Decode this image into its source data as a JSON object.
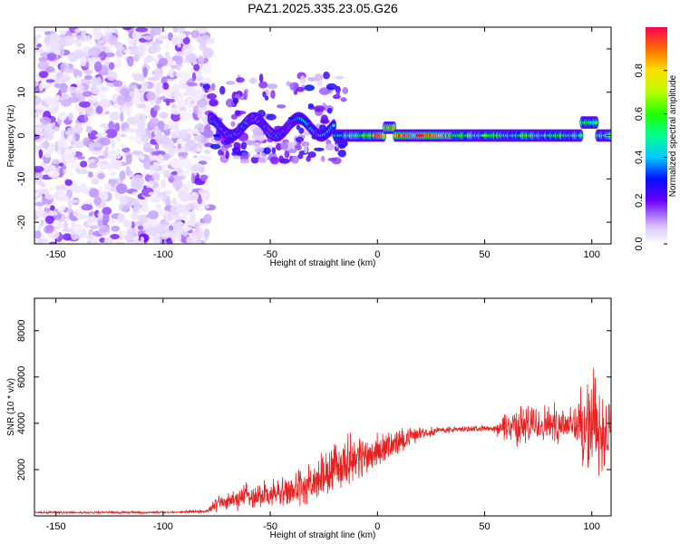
{
  "chart_data": [
    {
      "type": "heatmap",
      "title": "PAZ1.2025.335.23.05.G26",
      "xlabel": "Height of straight line (km)",
      "ylabel": "Frequency (Hz)",
      "xlim": [
        -160,
        109
      ],
      "ylim": [
        -25,
        25
      ],
      "xticks": [
        -150,
        -100,
        -50,
        0,
        50,
        100
      ],
      "yticks": [
        -20,
        -10,
        0,
        10,
        20
      ],
      "colorbar": {
        "label": "Normalized spectral amplitude",
        "range": [
          0,
          1
        ],
        "ticks": [
          "0.0",
          "0.2",
          "0.4",
          "0.6",
          "0.8"
        ]
      },
      "description_points": [
        {
          "x": -130,
          "y": 0,
          "amplitude": 0.05
        },
        {
          "x": -75,
          "y": 0,
          "amplitude": 0.3
        },
        {
          "x": -40,
          "y": 4,
          "amplitude": 0.25
        },
        {
          "x": 0,
          "y": 0,
          "amplitude": 0.95
        },
        {
          "x": 20,
          "y": 0,
          "amplitude": 1.0
        },
        {
          "x": 50,
          "y": 0,
          "amplitude": 0.6
        },
        {
          "x": 100,
          "y": 3,
          "amplitude": 0.4
        }
      ]
    },
    {
      "type": "line",
      "title": "",
      "xlabel": "Height of straight line (km)",
      "ylabel": "SNR (10 * v/v)",
      "xlim": [
        -160,
        109
      ],
      "ylim": [
        0,
        9400
      ],
      "xticks": [
        -150,
        -100,
        -50,
        0,
        50,
        100
      ],
      "yticks": [
        2000,
        4000,
        6000,
        8000
      ],
      "series": [
        {
          "name": "SNR",
          "color": "#e82020",
          "envelope_x": [
            -160,
            -100,
            -80,
            -75,
            -60,
            -50,
            -40,
            -30,
            -20,
            -15,
            -10,
            -5,
            0,
            10,
            20,
            30,
            40,
            50,
            55,
            60,
            70,
            80,
            90,
            95,
            100,
            105,
            109
          ],
          "envelope_y": [
            150,
            150,
            200,
            500,
            900,
            900,
            1100,
            1400,
            2000,
            2400,
            2500,
            2600,
            2800,
            3200,
            3600,
            3700,
            3750,
            3800,
            3700,
            3900,
            3900,
            4000,
            4000,
            3900,
            3800,
            3700,
            3600
          ],
          "envelope_spread": [
            60,
            60,
            80,
            400,
            700,
            700,
            900,
            1100,
            1300,
            1300,
            1200,
            1100,
            900,
            700,
            300,
            200,
            150,
            150,
            200,
            900,
            1100,
            1000,
            1100,
            1800,
            2600,
            2400,
            1500
          ]
        }
      ]
    }
  ]
}
